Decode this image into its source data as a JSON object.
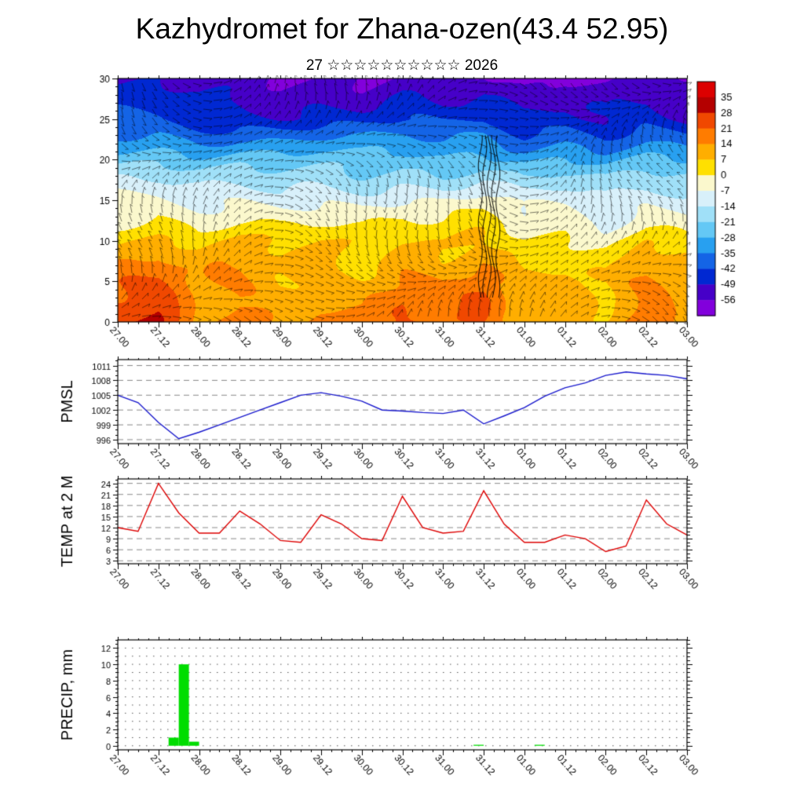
{
  "title": "Kazhydromet for Zhana-ozen(43.4 52.95)",
  "subtitle": "27 ☆☆☆☆☆☆☆☆☆☆ 2026",
  "time_axis": {
    "labels": [
      "27.00",
      "27.12",
      "28.00",
      "28.12",
      "29.00",
      "29.12",
      "30.00",
      "30.12",
      "31.00",
      "31.12",
      "01.00",
      "01.12",
      "02.00",
      "02.12",
      "03.00"
    ],
    "major_step_hours": 12,
    "minor_step_hours": 3,
    "total_hours": 168
  },
  "chart_data": [
    {
      "id": "cross_section",
      "type": "heatmap",
      "title": "",
      "y_ticks": [
        0,
        5,
        10,
        15,
        20,
        25,
        30
      ],
      "heights": [
        0,
        5,
        10,
        15,
        20,
        25,
        30
      ],
      "temps": [
        [
          27,
          29,
          14,
          18,
          13,
          17,
          13,
          22,
          15,
          24,
          11,
          14,
          9,
          19,
          12
        ],
        [
          19,
          21,
          11,
          14,
          10,
          13,
          10,
          16,
          12,
          18,
          8,
          10,
          6,
          14,
          9
        ],
        [
          8,
          10,
          5,
          7,
          4,
          6,
          4,
          8,
          5,
          9,
          1,
          3,
          0,
          6,
          3
        ],
        [
          -6,
          -5,
          -8,
          -7,
          -9,
          -8,
          -9,
          -6,
          -8,
          -5,
          -12,
          -10,
          -13,
          -8,
          -10
        ],
        [
          -24,
          -23,
          -26,
          -25,
          -27,
          -26,
          -27,
          -24,
          -26,
          -23,
          -30,
          -28,
          -31,
          -26,
          -28
        ],
        [
          -43,
          -42,
          -45,
          -44,
          -46,
          -45,
          -46,
          -43,
          -45,
          -42,
          -49,
          -47,
          -50,
          -45,
          -47
        ],
        [
          -53,
          -52,
          -56,
          -54,
          -57,
          -55,
          -57,
          -53,
          -56,
          -52,
          -58,
          -56,
          -59,
          -55,
          -57
        ]
      ],
      "colorbar": {
        "tick_labels": [
          35,
          28,
          21,
          14,
          7,
          0,
          -7,
          -14,
          -21,
          -28,
          -35,
          -42,
          -49,
          -56
        ],
        "band_colors": [
          "#dc0000",
          "#b40000",
          "#f04800",
          "#ff7c00",
          "#ffae00",
          "#ffe000",
          "#fbf8cd",
          "#d8f0fa",
          "#a0e0f8",
          "#64c8f5",
          "#28a0f0",
          "#1464e6",
          "#0028d2",
          "#4600c8",
          "#8200dc"
        ]
      }
    },
    {
      "id": "pmsl",
      "type": "line",
      "label": "PMSL",
      "color": "#1818cc",
      "y_ticks": [
        996,
        999,
        1002,
        1005,
        1008,
        1011
      ],
      "ylim": [
        995.2,
        1012.2
      ],
      "x_hours": [
        0,
        6,
        12,
        18,
        24,
        30,
        36,
        42,
        48,
        54,
        60,
        66,
        72,
        78,
        84,
        90,
        96,
        102,
        108,
        114,
        120,
        126,
        132,
        138,
        144,
        150,
        156,
        162,
        168
      ],
      "values": [
        1005,
        1003.5,
        999.5,
        996.2,
        997.5,
        999,
        1000.5,
        1002,
        1003.5,
        1005,
        1005.5,
        1004.8,
        1003.8,
        1002,
        1001.8,
        1001.5,
        1001.3,
        1002,
        999.2,
        1000.8,
        1002.5,
        1004.8,
        1006.5,
        1007.5,
        1009,
        1009.7,
        1009.3,
        1009,
        1008.3
      ]
    },
    {
      "id": "temp2m",
      "type": "line",
      "label": "TEMP at 2 M",
      "color": "#dd0000",
      "y_ticks": [
        3,
        6,
        9,
        12,
        15,
        18,
        21,
        24
      ],
      "ylim": [
        2.2,
        25.2
      ],
      "x_hours": [
        0,
        6,
        12,
        18,
        24,
        30,
        36,
        42,
        48,
        54,
        60,
        66,
        72,
        78,
        84,
        90,
        96,
        102,
        108,
        114,
        120,
        126,
        132,
        138,
        144,
        150,
        156,
        162,
        168
      ],
      "values": [
        12,
        11,
        24,
        16,
        10.5,
        10.5,
        16.5,
        13,
        8.5,
        8,
        15.5,
        13,
        9,
        8.5,
        20.5,
        12,
        10.5,
        11,
        22,
        13,
        8,
        8,
        10,
        9,
        5.5,
        7,
        19.5,
        13,
        10
      ]
    },
    {
      "id": "precip",
      "type": "bar",
      "label": "PRECIP, mm",
      "color": "#00dd00",
      "y_ticks": [
        0,
        2,
        4,
        6,
        8,
        10,
        12
      ],
      "ylim": [
        -0.5,
        13
      ],
      "bar_width_hours": 3,
      "bars": [
        {
          "hour": 15,
          "value": 1
        },
        {
          "hour": 18,
          "value": 10
        },
        {
          "hour": 21,
          "value": 0.5
        },
        {
          "hour": 105,
          "value": 0.12
        },
        {
          "hour": 123,
          "value": 0.12
        }
      ]
    }
  ]
}
